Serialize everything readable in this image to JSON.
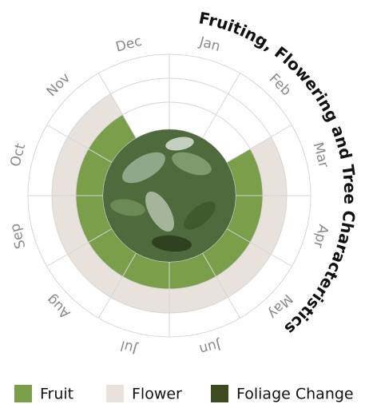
{
  "chart_data": {
    "type": "radial",
    "title": "Fruiting, Flowering and Tree Characteristics",
    "categories": [
      "Jan",
      "Feb",
      "Mar",
      "Apr",
      "May",
      "Jun",
      "Jul",
      "Aug",
      "Sep",
      "Oct",
      "Nov",
      "Dec"
    ],
    "series": [
      {
        "name": "Fruit",
        "color": "#7a9e4a",
        "values": [
          0,
          0,
          1,
          1,
          1,
          1,
          1,
          1,
          1,
          1,
          1,
          0
        ]
      },
      {
        "name": "Flower",
        "color": "#e8e1dc",
        "values": [
          0,
          0,
          1,
          1,
          1,
          1,
          1,
          1,
          1,
          1,
          1,
          0
        ]
      },
      {
        "name": "Foliage Change",
        "color": "#3b4a1f",
        "values": [
          0,
          0,
          0,
          0,
          0,
          0,
          0,
          0,
          0,
          0,
          0,
          0
        ]
      }
    ]
  }
}
